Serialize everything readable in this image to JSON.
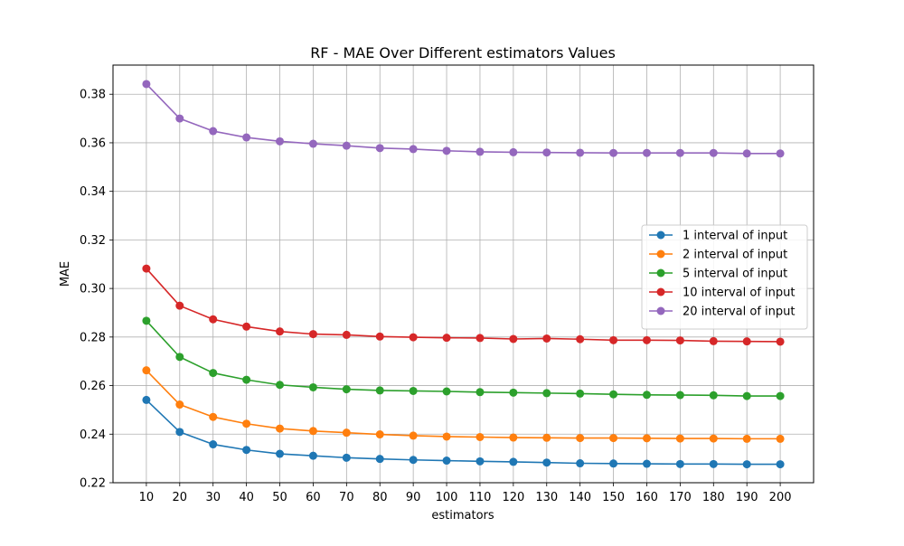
{
  "chart_data": {
    "type": "line",
    "title": "RF - MAE Over Different estimators Values",
    "xlabel": "estimators",
    "ylabel": "MAE",
    "x": [
      10,
      20,
      30,
      40,
      50,
      60,
      70,
      80,
      90,
      100,
      110,
      120,
      130,
      140,
      150,
      160,
      170,
      180,
      190,
      200
    ],
    "x_tick_labels": [
      "10",
      "20",
      "30",
      "40",
      "50",
      "60",
      "70",
      "80",
      "90",
      "100",
      "110",
      "120",
      "130",
      "140",
      "150",
      "160",
      "170",
      "180",
      "190",
      "200"
    ],
    "xlim": [
      0,
      210
    ],
    "ylim": [
      0.22,
      0.392
    ],
    "y_ticks": [
      0.22,
      0.24,
      0.26,
      0.28,
      0.3,
      0.32,
      0.34,
      0.36,
      0.38
    ],
    "y_tick_labels": [
      "0.22",
      "0.24",
      "0.26",
      "0.28",
      "0.30",
      "0.32",
      "0.34",
      "0.36",
      "0.38"
    ],
    "grid": true,
    "legend_position": "center-right",
    "series": [
      {
        "name": "1 interval of input",
        "color": "#1f77b4",
        "values": [
          0.2541,
          0.2409,
          0.2358,
          0.2335,
          0.2319,
          0.2311,
          0.2303,
          0.2298,
          0.2294,
          0.2291,
          0.2288,
          0.2286,
          0.2283,
          0.228,
          0.2279,
          0.2278,
          0.2277,
          0.2277,
          0.2276,
          0.2276
        ]
      },
      {
        "name": "2 interval of input",
        "color": "#ff7f0e",
        "values": [
          0.2663,
          0.2522,
          0.2471,
          0.2443,
          0.2423,
          0.2413,
          0.2406,
          0.2399,
          0.2394,
          0.239,
          0.2388,
          0.2386,
          0.2385,
          0.2384,
          0.2384,
          0.2383,
          0.2382,
          0.2382,
          0.2381,
          0.2381
        ]
      },
      {
        "name": "5 interval of input",
        "color": "#2ca02c",
        "values": [
          0.2867,
          0.2718,
          0.2652,
          0.2624,
          0.2603,
          0.2593,
          0.2585,
          0.258,
          0.2578,
          0.2576,
          0.2573,
          0.2571,
          0.2569,
          0.2567,
          0.2564,
          0.2562,
          0.2561,
          0.256,
          0.2557,
          0.2557
        ]
      },
      {
        "name": "10 interval of input",
        "color": "#d62728",
        "values": [
          0.3082,
          0.2929,
          0.2873,
          0.2843,
          0.2823,
          0.2812,
          0.2809,
          0.2802,
          0.2799,
          0.2797,
          0.2796,
          0.2792,
          0.2794,
          0.2791,
          0.2787,
          0.2787,
          0.2786,
          0.2783,
          0.2782,
          0.2781
        ]
      },
      {
        "name": "20 interval of input",
        "color": "#9467bd",
        "values": [
          0.3842,
          0.37,
          0.3648,
          0.3622,
          0.3606,
          0.3596,
          0.3588,
          0.3578,
          0.3574,
          0.3567,
          0.3563,
          0.3561,
          0.356,
          0.3559,
          0.3558,
          0.3558,
          0.3558,
          0.3558,
          0.3556,
          0.3556
        ]
      }
    ]
  }
}
